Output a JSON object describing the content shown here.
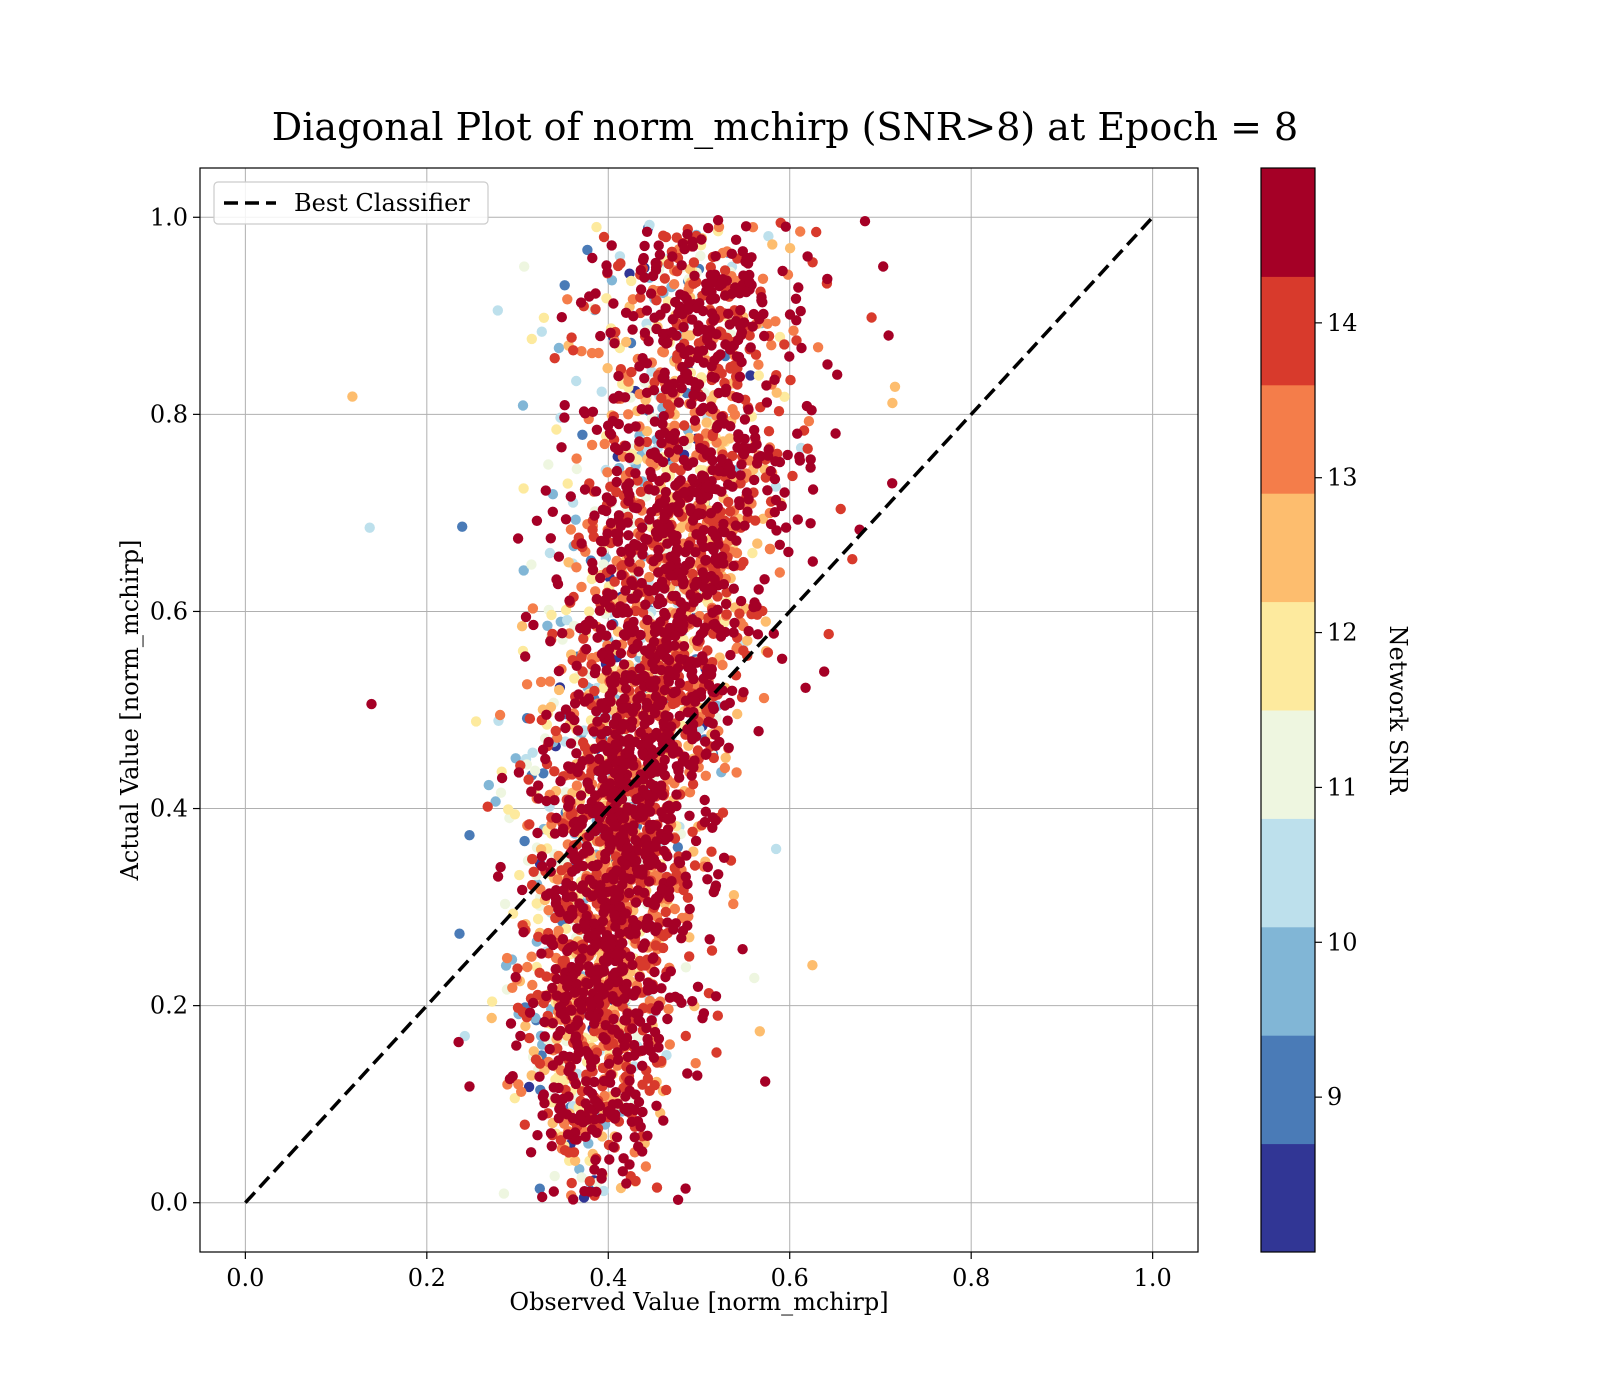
{
  "chart_data": {
    "type": "scatter",
    "title": "Diagonal Plot of norm_mchirp (SNR>8) at Epoch = 8",
    "xlabel": "Observed Value [norm_mchirp]",
    "ylabel": "Actual Value [norm_mchirp]",
    "xlim": [
      -0.05,
      1.05
    ],
    "ylim": [
      -0.05,
      1.05
    ],
    "xticks": [
      "0.0",
      "0.2",
      "0.4",
      "0.6",
      "0.8",
      "1.0"
    ],
    "yticks": [
      "0.0",
      "0.2",
      "0.4",
      "0.6",
      "0.8",
      "1.0"
    ],
    "grid": true,
    "legend": {
      "position": "top-left",
      "entries": [
        "Best Classifier"
      ]
    },
    "reference_line": {
      "name": "Best Classifier",
      "style": "dashed",
      "color": "#000000",
      "x": [
        0.0,
        1.0
      ],
      "y": [
        0.0,
        1.0
      ]
    },
    "colorbar": {
      "label": "Network SNR",
      "range": [
        8.0,
        15.0
      ],
      "tick_values": [
        9,
        10,
        11,
        12,
        13,
        14
      ],
      "tick_labels": [
        "9",
        "10",
        "11",
        "12",
        "13",
        "14"
      ],
      "colors": [
        "#313695",
        "#4575b4",
        "#74add1",
        "#abd9e9",
        "#e0f3f8",
        "#ffffbf",
        "#fee090",
        "#fdae61",
        "#f46d43",
        "#d73027",
        "#a50026"
      ],
      "bins": [
        {
          "from": 8.0,
          "to": 8.7,
          "color": "#313695"
        },
        {
          "from": 8.7,
          "to": 9.4,
          "color": "#4a7bb7"
        },
        {
          "from": 9.4,
          "to": 10.1,
          "color": "#81b6d6"
        },
        {
          "from": 10.1,
          "to": 10.8,
          "color": "#bde0ec"
        },
        {
          "from": 10.8,
          "to": 11.5,
          "color": "#eef6e0"
        },
        {
          "from": 11.5,
          "to": 12.2,
          "color": "#fdea9e"
        },
        {
          "from": 12.2,
          "to": 12.9,
          "color": "#fdbd6e"
        },
        {
          "from": 12.9,
          "to": 13.6,
          "color": "#f47d4a"
        },
        {
          "from": 13.6,
          "to": 14.3,
          "color": "#d83a2c"
        },
        {
          "from": 14.3,
          "to": 15.0,
          "color": "#a50026"
        }
      ]
    },
    "outliers": [
      {
        "x": 0.118,
        "y": 0.818,
        "snr": 12.6
      },
      {
        "x": 0.137,
        "y": 0.685,
        "snr": 10.4
      },
      {
        "x": 0.239,
        "y": 0.686,
        "snr": 9.0
      },
      {
        "x": 0.139,
        "y": 0.506,
        "snr": 14.8
      },
      {
        "x": 0.247,
        "y": 0.373,
        "snr": 9.0
      },
      {
        "x": 0.236,
        "y": 0.273,
        "snr": 9.0
      },
      {
        "x": 0.306,
        "y": 0.809,
        "snr": 9.7
      },
      {
        "x": 0.329,
        "y": 0.898,
        "snr": 12.0
      },
      {
        "x": 0.339,
        "y": 0.719,
        "snr": 9.7
      },
      {
        "x": 0.341,
        "y": 0.857,
        "snr": 13.8
      },
      {
        "x": 0.352,
        "y": 0.931,
        "snr": 9.0
      },
      {
        "x": 0.305,
        "y": 0.585,
        "snr": 12.6
      },
      {
        "x": 0.306,
        "y": 0.56,
        "snr": 12.0
      },
      {
        "x": 0.279,
        "y": 0.489,
        "snr": 10.4
      },
      {
        "x": 0.298,
        "y": 0.451,
        "snr": 9.7
      },
      {
        "x": 0.283,
        "y": 0.431,
        "snr": 14.8
      },
      {
        "x": 0.585,
        "y": 0.359,
        "snr": 10.4
      },
      {
        "x": 0.625,
        "y": 0.241,
        "snr": 12.6
      },
      {
        "x": 0.561,
        "y": 0.228,
        "snr": 11.2
      },
      {
        "x": 0.567,
        "y": 0.174,
        "snr": 12.6
      },
      {
        "x": 0.573,
        "y": 0.123,
        "snr": 14.8
      },
      {
        "x": 0.247,
        "y": 0.118,
        "snr": 14.8
      },
      {
        "x": 0.235,
        "y": 0.163,
        "snr": 14.8
      },
      {
        "x": 0.341,
        "y": 0.027,
        "snr": 11.2
      },
      {
        "x": 0.395,
        "y": 0.012,
        "snr": 10.4
      },
      {
        "x": 0.477,
        "y": 0.003,
        "snr": 14.8
      },
      {
        "x": 0.709,
        "y": 0.88,
        "snr": 14.8
      },
      {
        "x": 0.716,
        "y": 0.828,
        "snr": 12.6
      },
      {
        "x": 0.713,
        "y": 0.73,
        "snr": 14.8
      },
      {
        "x": 0.703,
        "y": 0.95,
        "snr": 14.8
      },
      {
        "x": 0.683,
        "y": 0.996,
        "snr": 14.8
      },
      {
        "x": 0.521,
        "y": 0.997,
        "snr": 14.8
      },
      {
        "x": 0.677,
        "y": 0.683,
        "snr": 14.8
      },
      {
        "x": 0.669,
        "y": 0.653,
        "snr": 13.8
      },
      {
        "x": 0.643,
        "y": 0.577,
        "snr": 13.8
      },
      {
        "x": 0.638,
        "y": 0.539,
        "snr": 14.8
      }
    ],
    "clusters": [
      {
        "cx": 0.385,
        "cy": 0.1,
        "sx": 0.04,
        "sy": 0.055,
        "n": 260
      },
      {
        "cx": 0.395,
        "cy": 0.22,
        "sx": 0.045,
        "sy": 0.06,
        "n": 650
      },
      {
        "cx": 0.41,
        "cy": 0.36,
        "sx": 0.045,
        "sy": 0.06,
        "n": 750
      },
      {
        "cx": 0.44,
        "cy": 0.5,
        "sx": 0.05,
        "sy": 0.06,
        "n": 700
      },
      {
        "cx": 0.47,
        "cy": 0.64,
        "sx": 0.055,
        "sy": 0.065,
        "n": 650
      },
      {
        "cx": 0.5,
        "cy": 0.78,
        "sx": 0.06,
        "sy": 0.065,
        "n": 550
      },
      {
        "cx": 0.5,
        "cy": 0.92,
        "sx": 0.06,
        "sy": 0.04,
        "n": 300
      }
    ]
  }
}
